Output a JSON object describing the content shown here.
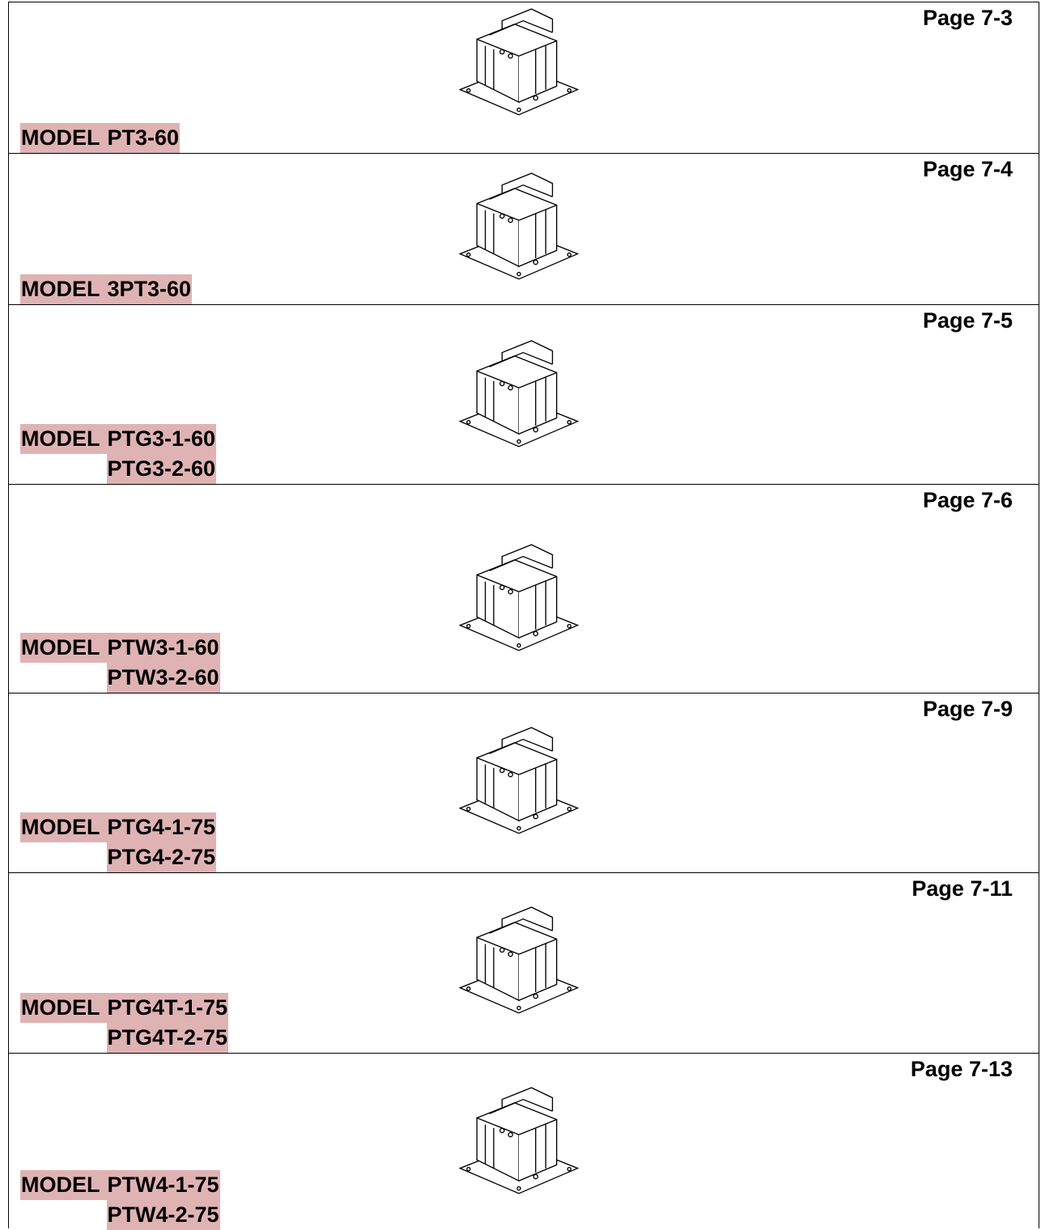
{
  "rows": [
    {
      "page": "Page 7-3",
      "label": "MODEL",
      "models": [
        "PT3-60"
      ]
    },
    {
      "page": "Page 7-4",
      "label": "MODEL",
      "models": [
        "3PT3-60"
      ]
    },
    {
      "page": "Page 7-5",
      "label": "MODEL",
      "models": [
        "PTG3-1-60",
        "PTG3-2-60"
      ]
    },
    {
      "page": "Page 7-6",
      "label": "MODEL",
      "models": [
        "PTW3-1-60",
        "PTW3-2-60"
      ]
    },
    {
      "page": "Page 7-9",
      "label": "MODEL",
      "models": [
        "PTG4-1-75",
        "PTG4-2-75"
      ]
    },
    {
      "page": "Page 7-11",
      "label": "MODEL",
      "models": [
        "PTG4T-1-75",
        "PTG4T-2-75"
      ]
    },
    {
      "page": "Page 7-13",
      "label": "MODEL",
      "models": [
        "PTW4-1-75",
        "PTW4-2-75"
      ]
    }
  ]
}
